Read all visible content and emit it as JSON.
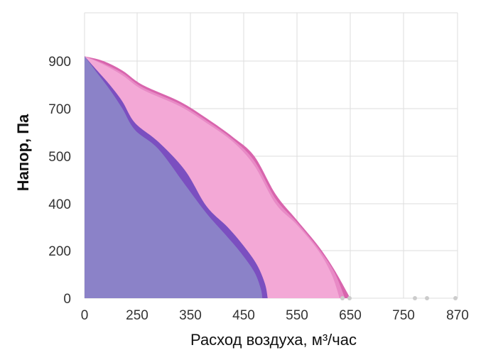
{
  "chart_data": {
    "type": "area",
    "title": "",
    "xlabel": "Расход воздуха, м³/час",
    "ylabel": "Напор, Па",
    "x_ticks": [
      0,
      250,
      350,
      450,
      550,
      650,
      750,
      870
    ],
    "y_ticks": [
      0,
      200,
      400,
      500,
      700,
      900
    ],
    "grid": true,
    "colors": {
      "purple_fill": "#8b82c8",
      "purple_band": "#7b4fc0",
      "pink_light": "#f3a8d6",
      "pink_mid": "#e88ac6",
      "magenta": "#d865ad",
      "grid": "#dddddd",
      "dot": "#cccccc"
    },
    "series": [
      {
        "x": [
          0,
          90,
          180,
          260,
          330,
          380,
          430,
          470,
          510,
          550,
          590,
          620,
          650
        ],
        "y": [
          920,
          900,
          860,
          800,
          730,
          660,
          580,
          500,
          420,
          330,
          220,
          120,
          0
        ],
        "color": "#d865ad"
      },
      {
        "x": [
          0,
          90,
          180,
          260,
          330,
          380,
          430,
          470,
          510,
          550,
          590,
          620,
          640
        ],
        "y": [
          920,
          890,
          850,
          790,
          720,
          650,
          570,
          490,
          410,
          320,
          210,
          110,
          0
        ],
        "color": "#e88ac6"
      },
      {
        "x": [
          0,
          90,
          180,
          260,
          330,
          380,
          430,
          470,
          510,
          550,
          590,
          615,
          630
        ],
        "y": [
          920,
          885,
          840,
          780,
          710,
          640,
          560,
          480,
          400,
          310,
          200,
          100,
          0
        ],
        "color": "#f3a8d6"
      },
      {
        "x": [
          0,
          60,
          120,
          180,
          240,
          290,
          340,
          380,
          420,
          450,
          475,
          490,
          495
        ],
        "y": [
          920,
          860,
          800,
          730,
          640,
          560,
          470,
          390,
          300,
          220,
          140,
          60,
          0
        ],
        "color": "#7b4fc0"
      },
      {
        "x": [
          0,
          60,
          120,
          180,
          240,
          290,
          340,
          380,
          415,
          445,
          470,
          482,
          485
        ],
        "y": [
          920,
          850,
          780,
          700,
          610,
          530,
          440,
          360,
          270,
          190,
          110,
          40,
          0
        ],
        "color": "#8b82c8"
      }
    ]
  }
}
